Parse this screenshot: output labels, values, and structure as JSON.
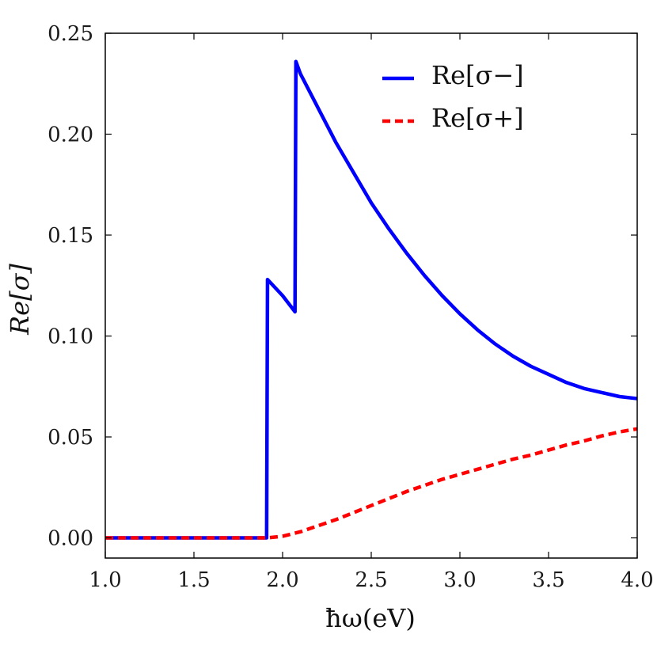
{
  "chart_data": {
    "type": "line",
    "title": "",
    "xlabel": "ħω(eV)",
    "ylabel": "Re[σ]",
    "xlim": [
      1.0,
      4.0
    ],
    "ylim": [
      -0.01,
      0.25
    ],
    "xticks": [
      "1.0",
      "1.5",
      "2.0",
      "2.5",
      "3.0",
      "3.5",
      "4.0"
    ],
    "yticks": [
      "0.00",
      "0.05",
      "0.10",
      "0.15",
      "0.20",
      "0.25"
    ],
    "grid": false,
    "legend_position": "top-right",
    "series": [
      {
        "name": "Re[σ−]",
        "color": "#0000ff",
        "dash": "solid",
        "points": [
          [
            1.0,
            0.0
          ],
          [
            1.5,
            0.0
          ],
          [
            1.91,
            0.0
          ],
          [
            1.915,
            0.128
          ],
          [
            2.0,
            0.12
          ],
          [
            2.07,
            0.112
          ],
          [
            2.075,
            0.236
          ],
          [
            2.1,
            0.23
          ],
          [
            2.2,
            0.213
          ],
          [
            2.3,
            0.196
          ],
          [
            2.4,
            0.181
          ],
          [
            2.5,
            0.166
          ],
          [
            2.6,
            0.153
          ],
          [
            2.7,
            0.141
          ],
          [
            2.8,
            0.13
          ],
          [
            2.9,
            0.12
          ],
          [
            3.0,
            0.111
          ],
          [
            3.1,
            0.103
          ],
          [
            3.2,
            0.096
          ],
          [
            3.3,
            0.09
          ],
          [
            3.4,
            0.085
          ],
          [
            3.5,
            0.081
          ],
          [
            3.6,
            0.077
          ],
          [
            3.7,
            0.074
          ],
          [
            3.8,
            0.072
          ],
          [
            3.9,
            0.07
          ],
          [
            4.0,
            0.069
          ]
        ]
      },
      {
        "name": "Re[σ+]",
        "color": "#ff0000",
        "dash": "dashed",
        "points": [
          [
            1.0,
            0.0
          ],
          [
            1.5,
            0.0
          ],
          [
            1.91,
            0.0
          ],
          [
            2.0,
            0.0008
          ],
          [
            2.1,
            0.003
          ],
          [
            2.2,
            0.006
          ],
          [
            2.3,
            0.009
          ],
          [
            2.4,
            0.0125
          ],
          [
            2.5,
            0.016
          ],
          [
            2.6,
            0.0195
          ],
          [
            2.7,
            0.023
          ],
          [
            2.8,
            0.026
          ],
          [
            2.9,
            0.029
          ],
          [
            3.0,
            0.0315
          ],
          [
            3.1,
            0.034
          ],
          [
            3.2,
            0.0365
          ],
          [
            3.3,
            0.039
          ],
          [
            3.4,
            0.041
          ],
          [
            3.5,
            0.0435
          ],
          [
            3.6,
            0.046
          ],
          [
            3.7,
            0.048
          ],
          [
            3.8,
            0.0505
          ],
          [
            3.9,
            0.0525
          ],
          [
            4.0,
            0.054
          ]
        ]
      }
    ]
  }
}
